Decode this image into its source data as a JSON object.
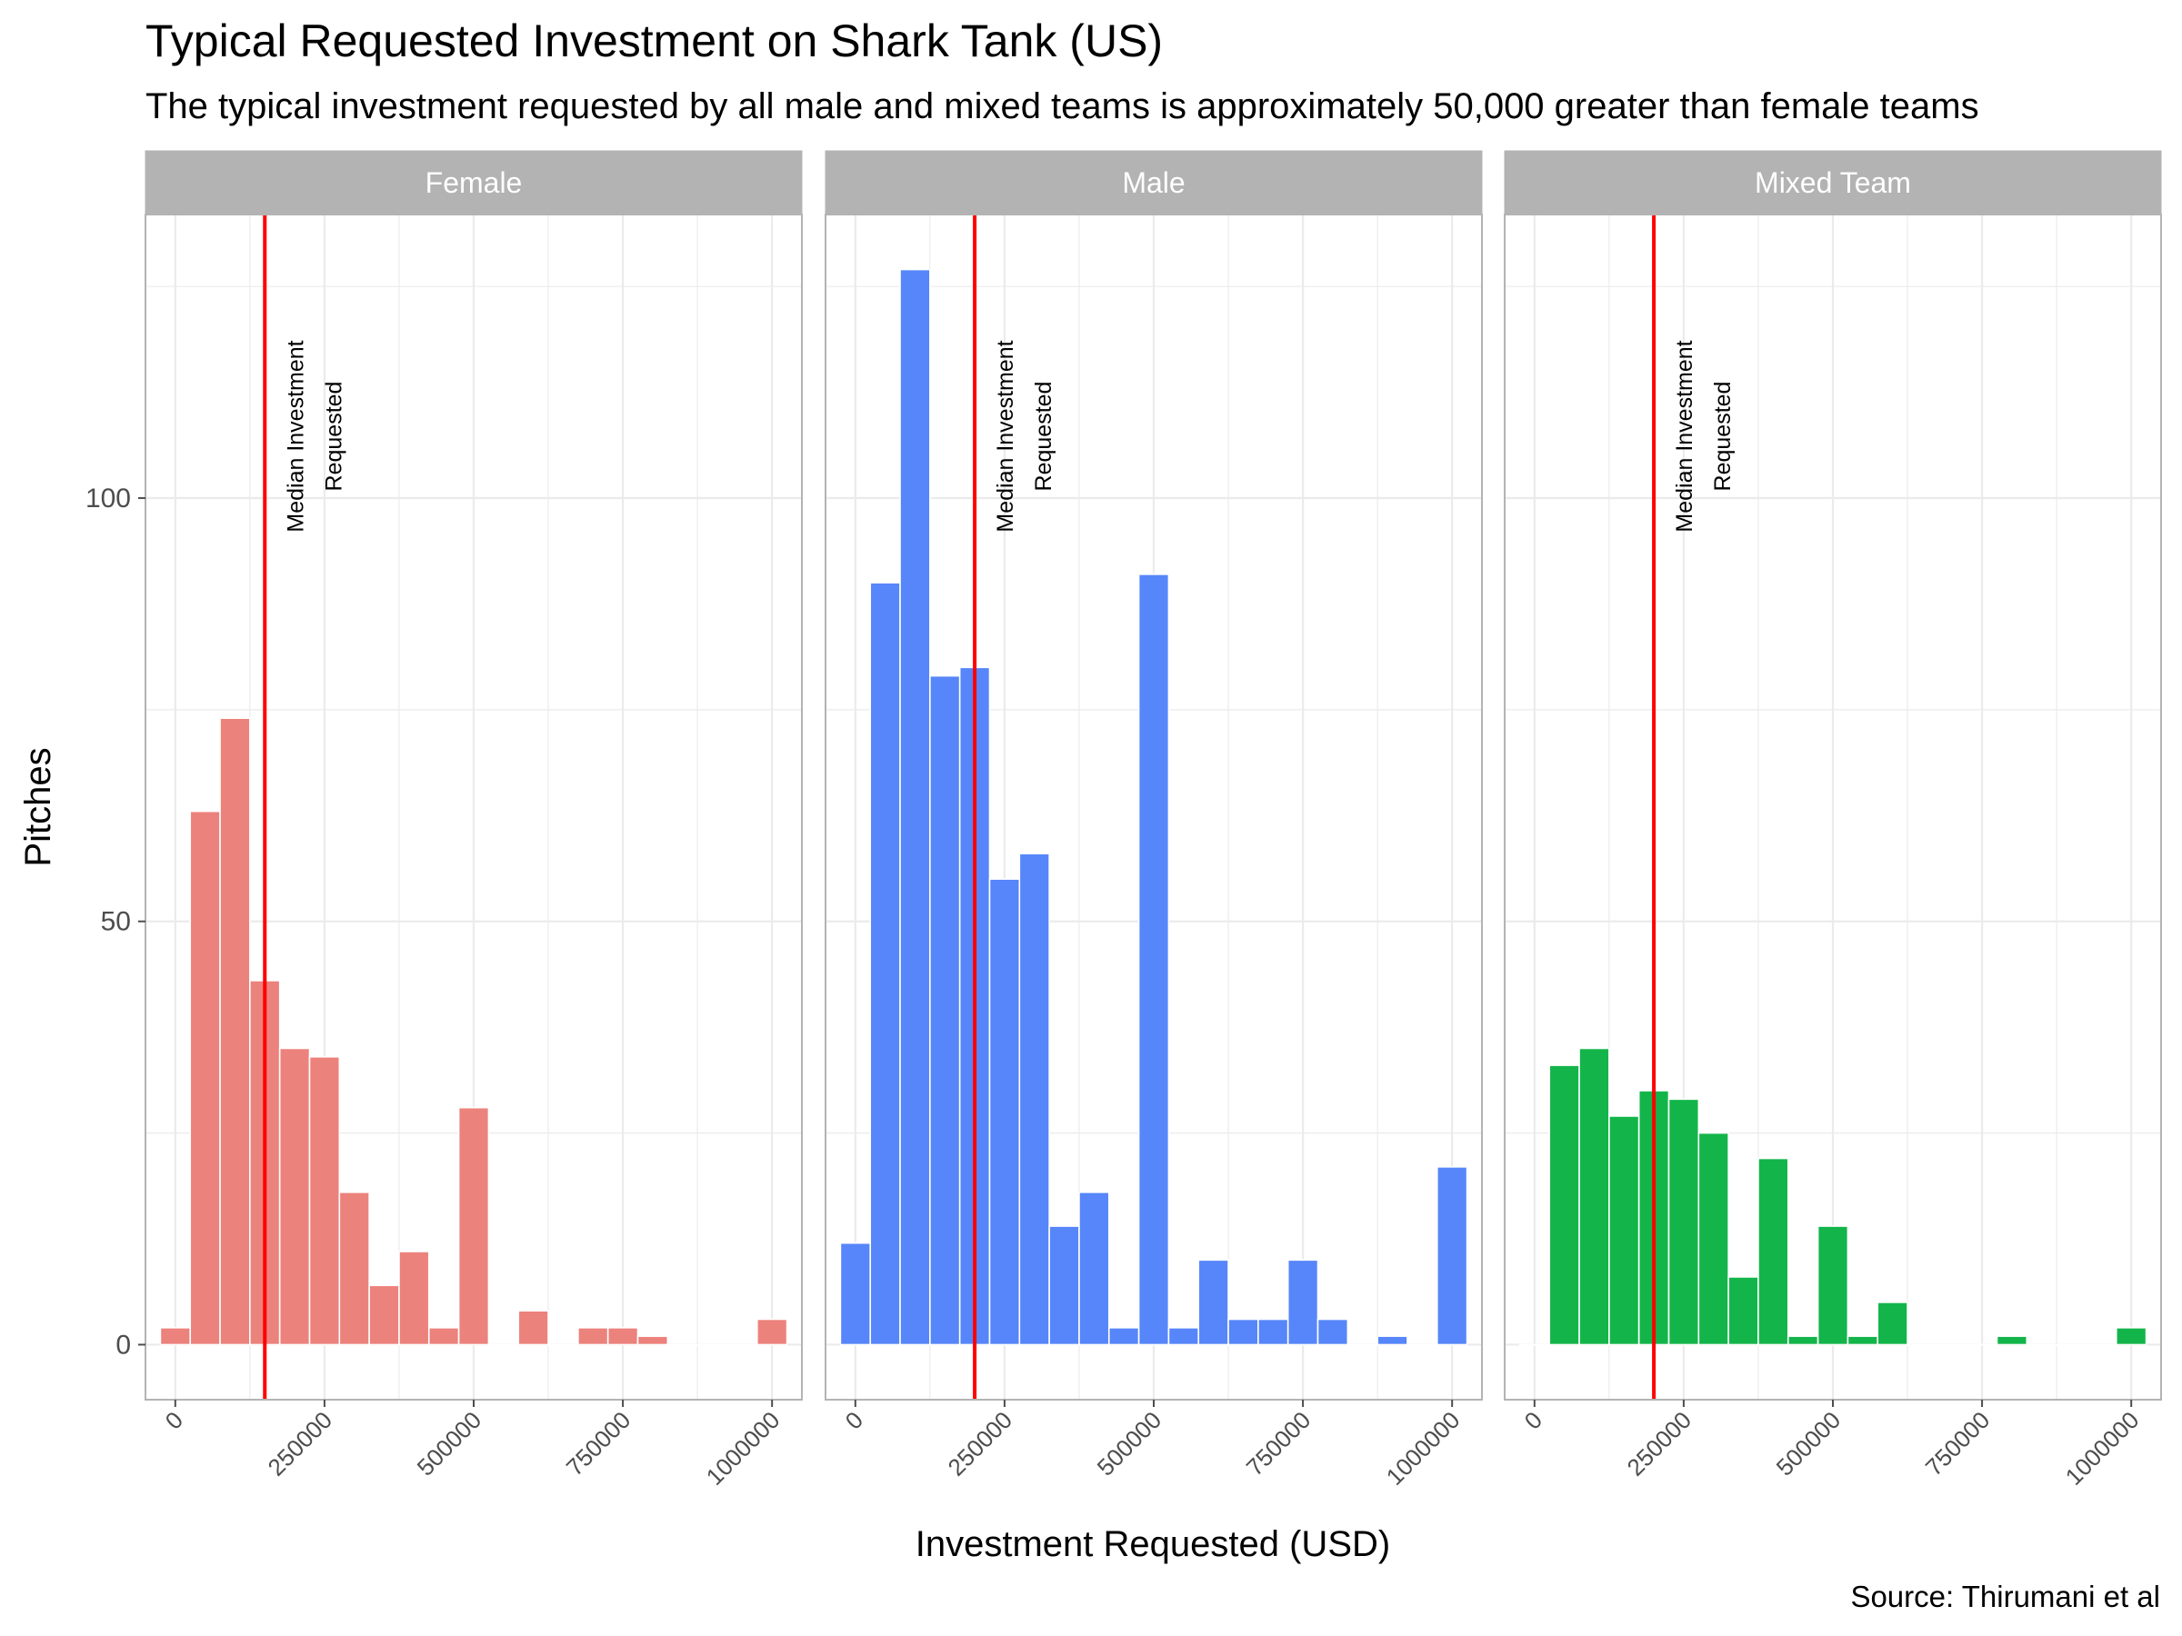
{
  "chart_data": {
    "type": "bar",
    "title": "Typical Requested Investment on Shark Tank (US)",
    "subtitle": "The typical investment requested by all male and mixed teams is approximately 50,000 greater than female teams",
    "xlabel": "Investment Requested (USD)",
    "ylabel": "Pitches",
    "caption": "Source: Thirumani et al",
    "annotation": [
      "Median Investment",
      "Requested"
    ],
    "xlim": [
      -50000,
      1050000
    ],
    "ylim": [
      -6.5,
      133.5
    ],
    "x_ticks": [
      "0",
      "250000",
      "500000",
      "750000",
      "1000000"
    ],
    "y_ticks": [
      "0",
      "50",
      "100"
    ],
    "bin_width": 50000,
    "x": [
      0,
      50000,
      100000,
      150000,
      200000,
      250000,
      300000,
      350000,
      400000,
      450000,
      500000,
      550000,
      600000,
      650000,
      700000,
      750000,
      800000,
      850000,
      900000,
      950000,
      1000000
    ],
    "median_line_color": "#FF0000",
    "panel_background": "#FFFFFF",
    "grid_color": "#EBEBEB",
    "strip_color": "#B3B3B3",
    "series": [
      {
        "name": "Female",
        "color": "#EC827C",
        "median": 150000,
        "values": [
          2,
          63,
          74,
          43,
          35,
          34,
          18,
          7,
          11,
          2,
          28,
          0,
          4,
          0,
          2,
          2,
          1,
          0,
          0,
          0,
          3
        ]
      },
      {
        "name": "Male",
        "color": "#5686F9",
        "median": 200000,
        "values": [
          12,
          90,
          127,
          79,
          80,
          55,
          58,
          14,
          18,
          2,
          91,
          2,
          10,
          3,
          3,
          10,
          3,
          0,
          1,
          0,
          21
        ]
      },
      {
        "name": "Mixed Team",
        "color": "#13B54A",
        "median": 200000,
        "values": [
          0,
          33,
          35,
          27,
          30,
          29,
          25,
          8,
          22,
          1,
          14,
          1,
          5,
          0,
          0,
          0,
          1,
          0,
          0,
          0,
          2
        ]
      }
    ]
  }
}
